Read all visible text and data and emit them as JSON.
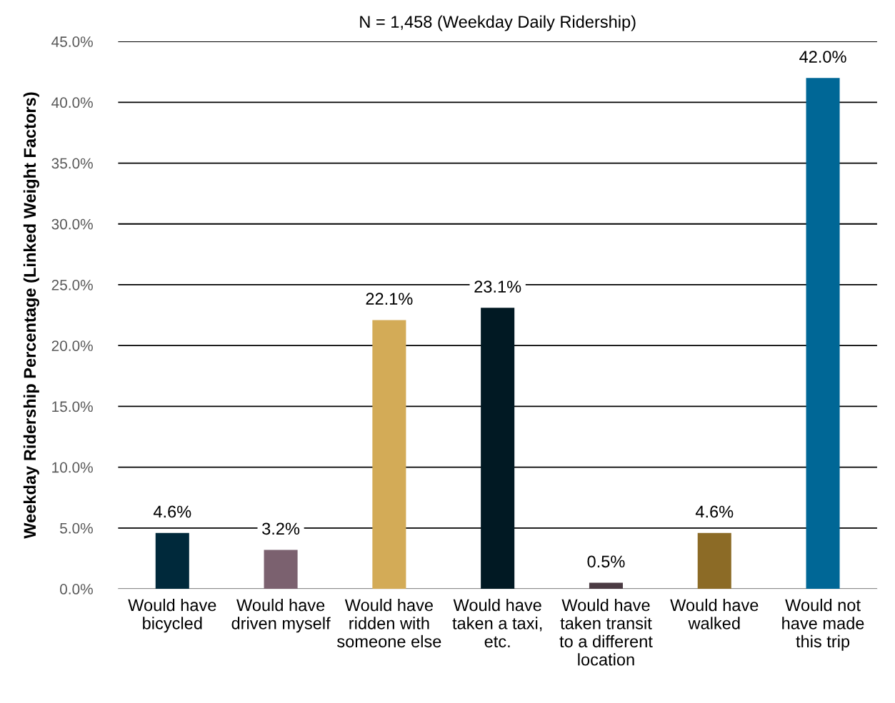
{
  "chart_data": {
    "type": "bar",
    "title": "N = 1,458 (Weekday Daily Ridership)",
    "ylabel": "Weekday Ridership Percentage (Linked Weight Factors)",
    "categories": [
      "Would have\nbicycled",
      "Would have\ndriven myself",
      "Would have\nridden with\nsomeone else",
      "Would have\ntaken a taxi,\netc.",
      "Would have\ntaken transit\nto a different\nlocation",
      "Would have\nwalked",
      "Would not\nhave made\nthis trip"
    ],
    "values": [
      4.6,
      3.2,
      22.1,
      23.1,
      0.5,
      4.6,
      42.0
    ],
    "colors": [
      "#00293b",
      "#7b616f",
      "#d3ab57",
      "#011923",
      "#4a3a42",
      "#8c6b26",
      "#006796"
    ],
    "value_labels": [
      "4.6%",
      "3.2%",
      "22.1%",
      "23.1%",
      "0.5%",
      "4.6%",
      "42.0%"
    ],
    "ylim": [
      0,
      45
    ],
    "yticks": [
      {
        "value": 0,
        "label": "0.0%"
      },
      {
        "value": 5,
        "label": "5.0%"
      },
      {
        "value": 10,
        "label": "10.0%"
      },
      {
        "value": 15,
        "label": "15.0%"
      },
      {
        "value": 20,
        "label": "20.0%"
      },
      {
        "value": 25,
        "label": "25.0%"
      },
      {
        "value": 30,
        "label": "30.0%"
      },
      {
        "value": 35,
        "label": "35.0%"
      },
      {
        "value": 40,
        "label": "40.0%"
      },
      {
        "value": 45,
        "label": "45.0%"
      }
    ],
    "grid": "y",
    "legend": false
  }
}
